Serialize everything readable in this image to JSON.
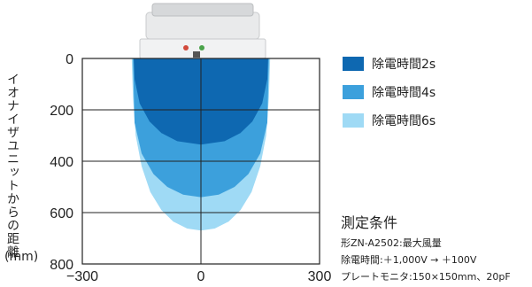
{
  "chart_data": {
    "type": "area",
    "ylabel": "イオナイザユニットからの距離",
    "yunit": "(mm)",
    "x_ticks": [
      "−300",
      "0",
      "300"
    ],
    "y_ticks": [
      "0",
      "200",
      "400",
      "600",
      "800"
    ],
    "xlim": [
      -300,
      300
    ],
    "ylim": [
      0,
      800
    ],
    "y_inverted": true,
    "grid": true,
    "legend_position": "right",
    "series": [
      {
        "name": "除電時間6s",
        "color": "#9fdaf5",
        "x": [
          -175,
          -172,
          -165,
          -150,
          -128,
          -100,
          -70,
          -35,
          0,
          35,
          70,
          100,
          128,
          150,
          165,
          172,
          175
        ],
        "y": [
          0,
          150,
          300,
          420,
          520,
          590,
          635,
          662,
          670,
          662,
          635,
          590,
          520,
          420,
          300,
          150,
          0
        ]
      },
      {
        "name": "除電時間4s",
        "color": "#3ca0dc",
        "x": [
          -172,
          -168,
          -150,
          -120,
          -85,
          -45,
          0,
          45,
          85,
          120,
          150,
          168,
          172
        ],
        "y": [
          0,
          250,
          370,
          450,
          500,
          530,
          540,
          530,
          500,
          450,
          370,
          250,
          0
        ]
      },
      {
        "name": "除電時間2s",
        "color": "#0e68b1",
        "x": [
          -170,
          -168,
          -155,
          -130,
          -100,
          -60,
          0,
          60,
          100,
          130,
          155,
          168,
          170
        ],
        "y": [
          0,
          80,
          175,
          245,
          290,
          322,
          335,
          322,
          290,
          245,
          175,
          80,
          0
        ]
      }
    ],
    "legend": [
      {
        "label": "除電時間2s",
        "color": "#0e68b1"
      },
      {
        "label": "除電時間4s",
        "color": "#3ca0dc"
      },
      {
        "label": "除電時間6s",
        "color": "#9fdaf5"
      }
    ]
  },
  "conditions": {
    "title": "測定条件",
    "lines": [
      "形ZN-A2502:最大風量",
      "除電時間:＋1,000V → ＋100V",
      "プレートモニタ:150×150mm、20pF"
    ]
  }
}
